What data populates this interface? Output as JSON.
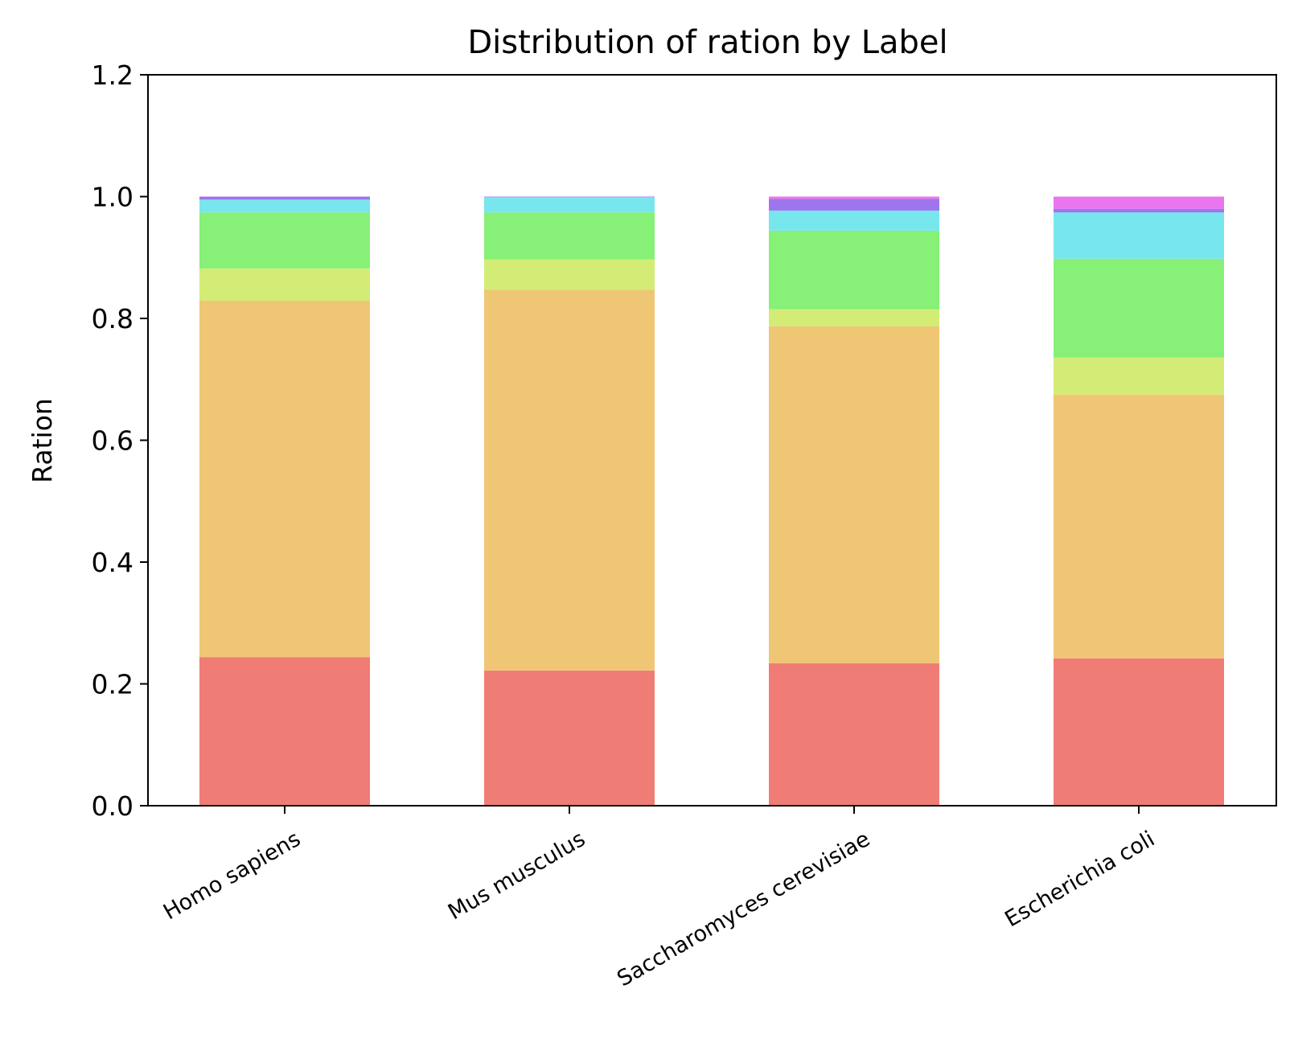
{
  "chart_data": {
    "type": "bar",
    "stacked": true,
    "title": "Distribution of ration by Label",
    "xlabel": "",
    "ylabel": "Ration",
    "ylim": [
      0,
      1.2
    ],
    "y_ticks": [
      "0.0",
      "0.2",
      "0.4",
      "0.6",
      "0.8",
      "1.0",
      "1.2"
    ],
    "grid": false,
    "legend": "none",
    "categories": [
      "Homo sapiens",
      "Mus musculus",
      "Saccharomyces cerevisiae",
      "Escherichia coli"
    ],
    "series": [
      {
        "color": "#f07c76",
        "values": [
          0.244,
          0.222,
          0.234,
          0.242
        ]
      },
      {
        "color": "#efc674",
        "values": [
          0.585,
          0.625,
          0.553,
          0.433
        ]
      },
      {
        "color": "#d3ec76",
        "values": [
          0.053,
          0.05,
          0.028,
          0.061
        ]
      },
      {
        "color": "#87f076",
        "values": [
          0.092,
          0.077,
          0.129,
          0.162
        ]
      },
      {
        "color": "#78e6ed",
        "values": [
          0.021,
          0.025,
          0.033,
          0.076
        ]
      },
      {
        "color": "#9d76ed",
        "values": [
          0.005,
          0.001,
          0.019,
          0.006
        ]
      },
      {
        "color": "#ea76ed",
        "values": [
          0.0,
          0.0,
          0.004,
          0.02
        ]
      }
    ]
  }
}
